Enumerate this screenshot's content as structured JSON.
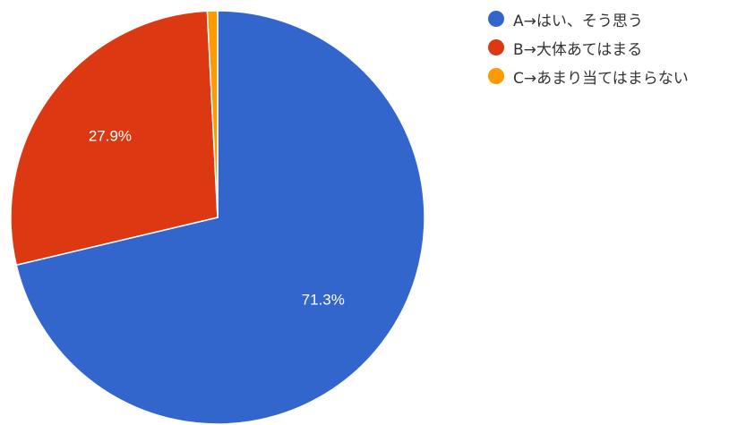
{
  "chart_data": {
    "type": "pie",
    "title": "",
    "start_angle_deg": 0,
    "direction": "clockwise",
    "slices": [
      {
        "label": "A→はい、そう思う",
        "value": 71.3,
        "value_label": "71.3%",
        "color": "#3366CC",
        "show_label": true
      },
      {
        "label": "B→大体あてはまる",
        "value": 27.9,
        "value_label": "27.9%",
        "color": "#DC3912",
        "show_label": true
      },
      {
        "label": "C→あまり当てはまらない",
        "value": 0.8,
        "value_label": "",
        "color": "#FF9900",
        "show_label": false
      }
    ],
    "legend_position": "right-top"
  }
}
